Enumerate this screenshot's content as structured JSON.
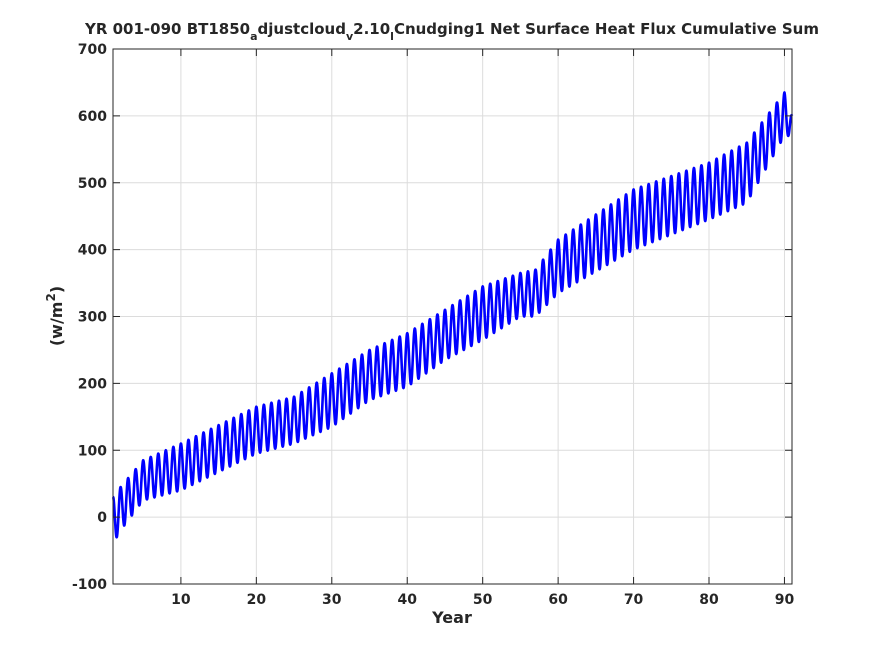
{
  "chart_data": {
    "type": "line",
    "title": {
      "part1": "YR 001-090 BT1850",
      "sub1": "a",
      "part2": "djustcloud",
      "sub2": "v",
      "part3": "2.10",
      "sub3": "l",
      "part4": "Cnudging1 Net Surface Heat Flux  Cumulative Sum"
    },
    "xlabel": "Year",
    "ylabel": {
      "base": "(w/m",
      "sup": "2",
      "end": ")"
    },
    "xlim": [
      1,
      91
    ],
    "ylim": [
      -100,
      700
    ],
    "xticks": [
      10,
      20,
      30,
      40,
      50,
      60,
      70,
      80,
      90
    ],
    "yticks": [
      -100,
      0,
      100,
      200,
      300,
      400,
      500,
      600,
      700
    ],
    "grid": true,
    "series": [
      {
        "color": "#0000ff",
        "seasonal_cycle": true,
        "envelope": {
          "x": [
            1,
            2,
            5,
            10,
            20,
            25,
            30,
            35,
            40,
            45,
            50,
            55,
            57,
            60,
            70,
            80,
            85,
            90,
            91
          ],
          "lower": [
            -40,
            -20,
            25,
            40,
            95,
            110,
            135,
            175,
            195,
            235,
            265,
            300,
            300,
            335,
            400,
            445,
            470,
            570,
            570
          ],
          "upper": [
            30,
            45,
            85,
            110,
            165,
            180,
            215,
            250,
            275,
            310,
            345,
            365,
            370,
            415,
            490,
            530,
            560,
            635,
            600
          ]
        }
      }
    ]
  }
}
